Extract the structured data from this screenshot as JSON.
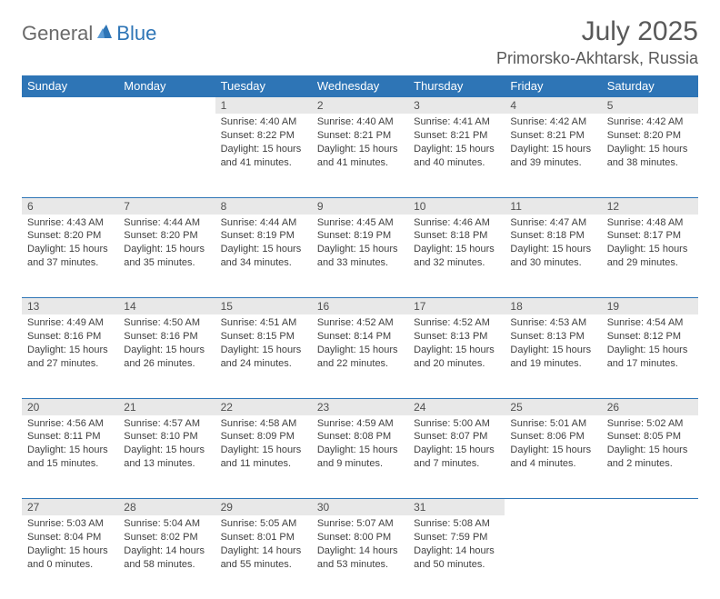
{
  "brand": {
    "part1": "General",
    "part2": "Blue",
    "color1": "#6a6a6a",
    "color2": "#2e75b6"
  },
  "title": {
    "month": "July 2025",
    "location": "Primorsko-Akhtarsk, Russia"
  },
  "theme": {
    "header_bg": "#2e75b6",
    "header_fg": "#ffffff",
    "daynum_bg": "#e8e8e8",
    "border_color": "#2e75b6",
    "text_color": "#404040"
  },
  "weekdays": [
    "Sunday",
    "Monday",
    "Tuesday",
    "Wednesday",
    "Thursday",
    "Friday",
    "Saturday"
  ],
  "weeks": [
    [
      null,
      null,
      {
        "n": "1",
        "sr": "4:40 AM",
        "ss": "8:22 PM",
        "dl": "15 hours and 41 minutes."
      },
      {
        "n": "2",
        "sr": "4:40 AM",
        "ss": "8:21 PM",
        "dl": "15 hours and 41 minutes."
      },
      {
        "n": "3",
        "sr": "4:41 AM",
        "ss": "8:21 PM",
        "dl": "15 hours and 40 minutes."
      },
      {
        "n": "4",
        "sr": "4:42 AM",
        "ss": "8:21 PM",
        "dl": "15 hours and 39 minutes."
      },
      {
        "n": "5",
        "sr": "4:42 AM",
        "ss": "8:20 PM",
        "dl": "15 hours and 38 minutes."
      }
    ],
    [
      {
        "n": "6",
        "sr": "4:43 AM",
        "ss": "8:20 PM",
        "dl": "15 hours and 37 minutes."
      },
      {
        "n": "7",
        "sr": "4:44 AM",
        "ss": "8:20 PM",
        "dl": "15 hours and 35 minutes."
      },
      {
        "n": "8",
        "sr": "4:44 AM",
        "ss": "8:19 PM",
        "dl": "15 hours and 34 minutes."
      },
      {
        "n": "9",
        "sr": "4:45 AM",
        "ss": "8:19 PM",
        "dl": "15 hours and 33 minutes."
      },
      {
        "n": "10",
        "sr": "4:46 AM",
        "ss": "8:18 PM",
        "dl": "15 hours and 32 minutes."
      },
      {
        "n": "11",
        "sr": "4:47 AM",
        "ss": "8:18 PM",
        "dl": "15 hours and 30 minutes."
      },
      {
        "n": "12",
        "sr": "4:48 AM",
        "ss": "8:17 PM",
        "dl": "15 hours and 29 minutes."
      }
    ],
    [
      {
        "n": "13",
        "sr": "4:49 AM",
        "ss": "8:16 PM",
        "dl": "15 hours and 27 minutes."
      },
      {
        "n": "14",
        "sr": "4:50 AM",
        "ss": "8:16 PM",
        "dl": "15 hours and 26 minutes."
      },
      {
        "n": "15",
        "sr": "4:51 AM",
        "ss": "8:15 PM",
        "dl": "15 hours and 24 minutes."
      },
      {
        "n": "16",
        "sr": "4:52 AM",
        "ss": "8:14 PM",
        "dl": "15 hours and 22 minutes."
      },
      {
        "n": "17",
        "sr": "4:52 AM",
        "ss": "8:13 PM",
        "dl": "15 hours and 20 minutes."
      },
      {
        "n": "18",
        "sr": "4:53 AM",
        "ss": "8:13 PM",
        "dl": "15 hours and 19 minutes."
      },
      {
        "n": "19",
        "sr": "4:54 AM",
        "ss": "8:12 PM",
        "dl": "15 hours and 17 minutes."
      }
    ],
    [
      {
        "n": "20",
        "sr": "4:56 AM",
        "ss": "8:11 PM",
        "dl": "15 hours and 15 minutes."
      },
      {
        "n": "21",
        "sr": "4:57 AM",
        "ss": "8:10 PM",
        "dl": "15 hours and 13 minutes."
      },
      {
        "n": "22",
        "sr": "4:58 AM",
        "ss": "8:09 PM",
        "dl": "15 hours and 11 minutes."
      },
      {
        "n": "23",
        "sr": "4:59 AM",
        "ss": "8:08 PM",
        "dl": "15 hours and 9 minutes."
      },
      {
        "n": "24",
        "sr": "5:00 AM",
        "ss": "8:07 PM",
        "dl": "15 hours and 7 minutes."
      },
      {
        "n": "25",
        "sr": "5:01 AM",
        "ss": "8:06 PM",
        "dl": "15 hours and 4 minutes."
      },
      {
        "n": "26",
        "sr": "5:02 AM",
        "ss": "8:05 PM",
        "dl": "15 hours and 2 minutes."
      }
    ],
    [
      {
        "n": "27",
        "sr": "5:03 AM",
        "ss": "8:04 PM",
        "dl": "15 hours and 0 minutes."
      },
      {
        "n": "28",
        "sr": "5:04 AM",
        "ss": "8:02 PM",
        "dl": "14 hours and 58 minutes."
      },
      {
        "n": "29",
        "sr": "5:05 AM",
        "ss": "8:01 PM",
        "dl": "14 hours and 55 minutes."
      },
      {
        "n": "30",
        "sr": "5:07 AM",
        "ss": "8:00 PM",
        "dl": "14 hours and 53 minutes."
      },
      {
        "n": "31",
        "sr": "5:08 AM",
        "ss": "7:59 PM",
        "dl": "14 hours and 50 minutes."
      },
      null,
      null
    ]
  ],
  "labels": {
    "sunrise": "Sunrise:",
    "sunset": "Sunset:",
    "daylight": "Daylight:"
  }
}
